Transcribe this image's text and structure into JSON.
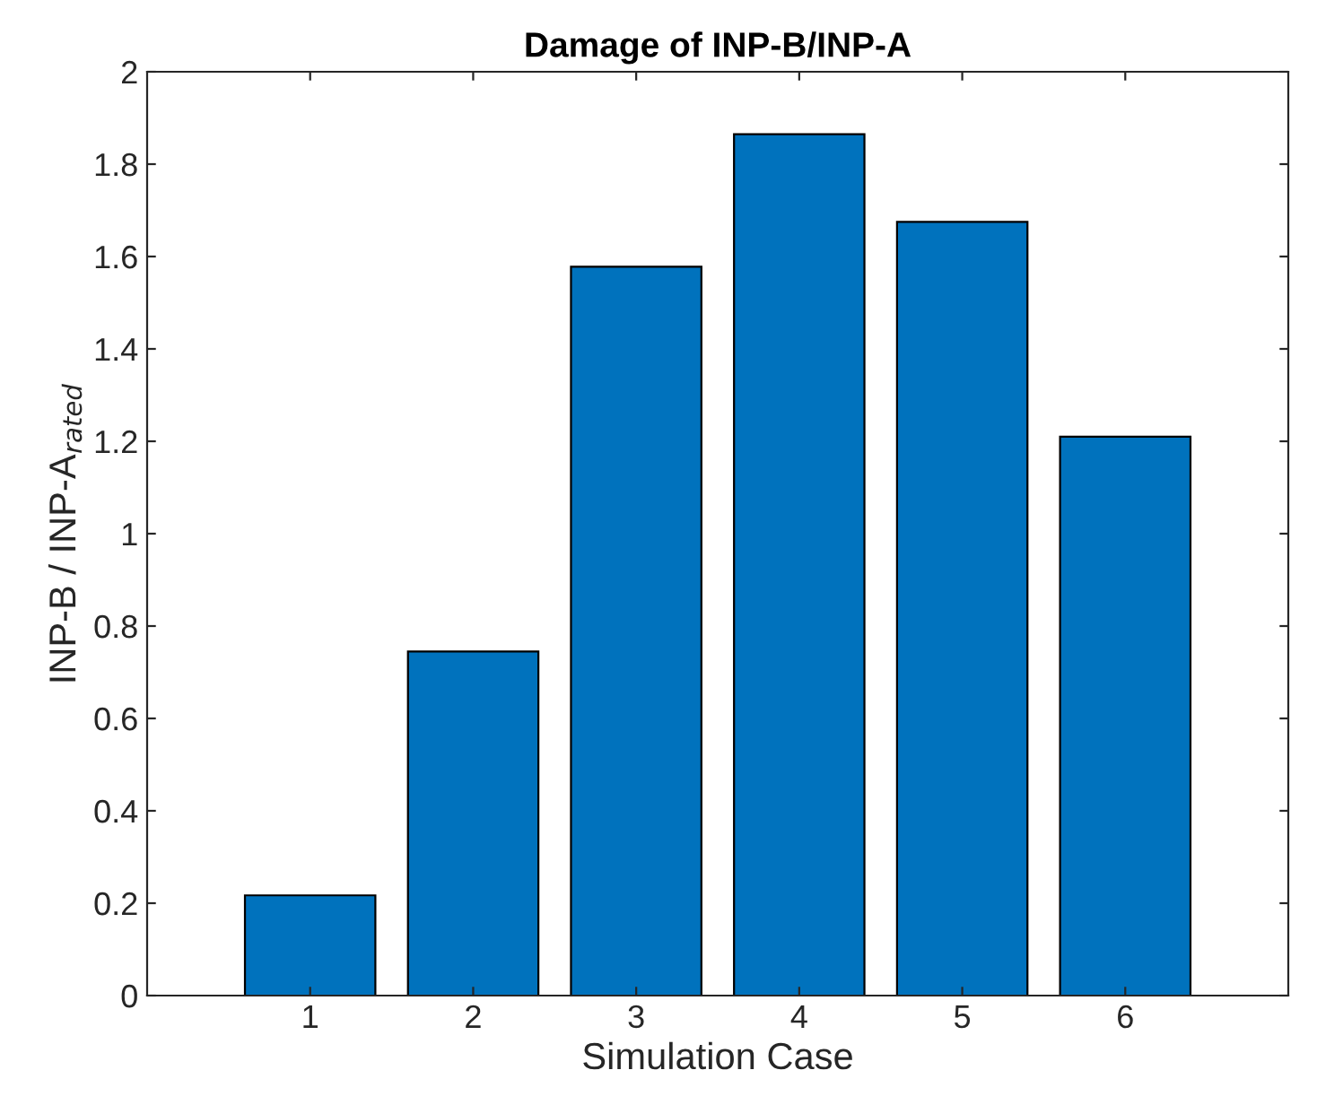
{
  "chart_data": {
    "type": "bar",
    "title": "Damage of INP-B/INP-A",
    "xlabel": "Simulation Case",
    "ylabel": "INP-B / INP-A$_{rated}$",
    "x": [
      1,
      2,
      3,
      4,
      5,
      6
    ],
    "values": [
      0.217,
      0.745,
      1.578,
      1.865,
      1.675,
      1.21
    ],
    "color": "#0072bd",
    "xlim": [
      0,
      7
    ],
    "xticks": [
      1,
      2,
      3,
      4,
      5,
      6
    ],
    "ylim": [
      0,
      2
    ],
    "yticks": [
      0,
      0.2,
      0.4,
      0.6,
      0.8,
      1,
      1.2,
      1.4,
      1.6,
      1.8,
      2
    ],
    "grid": false
  }
}
